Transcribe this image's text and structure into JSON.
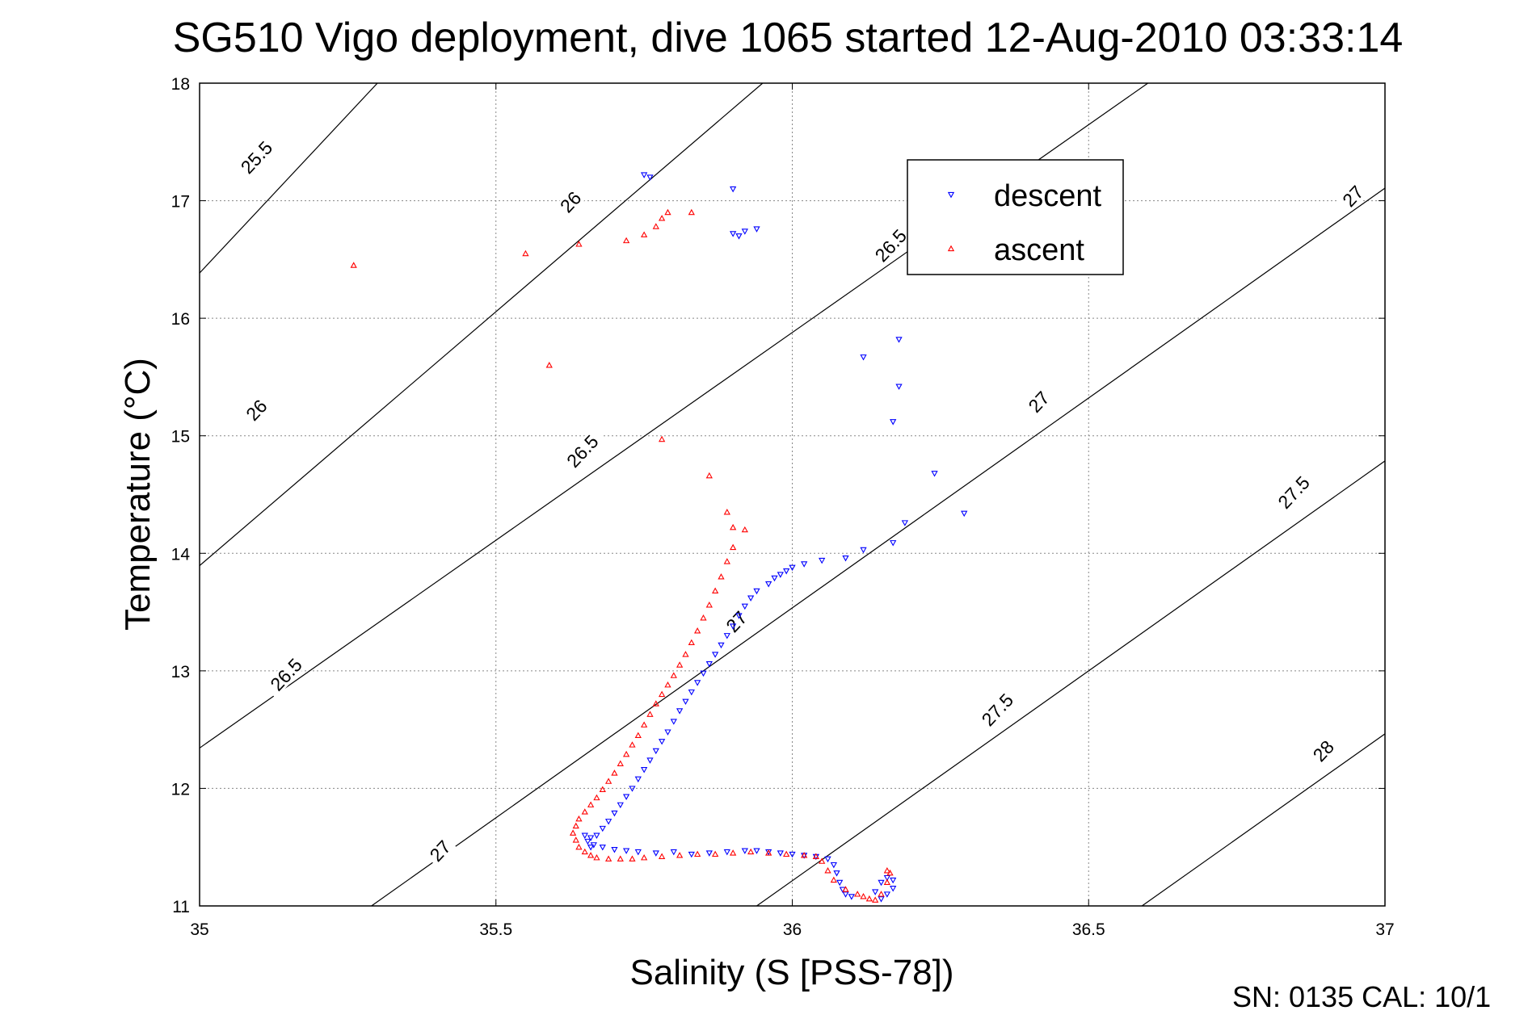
{
  "chart_data": {
    "type": "scatter",
    "title": "SG510 Vigo deployment, dive 1065 started 12-Aug-2010 03:33:14",
    "xlabel": "Salinity (S [PSS-78])",
    "ylabel": "Temperature (°C)",
    "xlim": [
      35,
      37
    ],
    "ylim": [
      11,
      18
    ],
    "x_ticks": [
      "35",
      "35.5",
      "36",
      "36.5",
      "37"
    ],
    "y_ticks": [
      "11",
      "12",
      "13",
      "14",
      "15",
      "16",
      "17",
      "18"
    ],
    "grid": true,
    "legend_position": "top-right",
    "footer": "SN: 0135  CAL: 10/1",
    "density_contours": [
      {
        "label": "25.5",
        "x_at_y11": 34.0,
        "x_at_y18": 35.3
      },
      {
        "label": "26",
        "x_at_y11": 34.33,
        "x_at_y18": 35.95
      },
      {
        "label": "26.5",
        "x_at_y11": 34.62,
        "x_at_y18": 36.6
      },
      {
        "label": "27",
        "x_at_y11": 35.29,
        "x_at_y18": 37.25
      },
      {
        "label": "27.5",
        "x_at_y11": 35.94,
        "x_at_y18": 37.9
      },
      {
        "label": "28",
        "x_at_y11": 36.59,
        "x_at_y18": 38.55
      }
    ],
    "contour_labels": [
      {
        "text": "25.5",
        "x": 35.1,
        "y": 17.35
      },
      {
        "text": "26",
        "x": 35.63,
        "y": 16.97
      },
      {
        "text": "26.5",
        "x": 36.17,
        "y": 16.6
      },
      {
        "text": "27",
        "x": 36.95,
        "y": 17.02
      },
      {
        "text": "26",
        "x": 35.1,
        "y": 15.2
      },
      {
        "text": "26.5",
        "x": 35.65,
        "y": 14.85
      },
      {
        "text": "27",
        "x": 36.42,
        "y": 15.27
      },
      {
        "text": "27.5",
        "x": 36.85,
        "y": 14.5
      },
      {
        "text": "26.5",
        "x": 35.15,
        "y": 12.95
      },
      {
        "text": "27",
        "x": 35.91,
        "y": 13.4
      },
      {
        "text": "27.5",
        "x": 36.35,
        "y": 12.65
      },
      {
        "text": "27",
        "x": 35.41,
        "y": 11.45
      },
      {
        "text": "28",
        "x": 36.9,
        "y": 12.3
      }
    ],
    "series": [
      {
        "name": "descent",
        "color": "#0000ff",
        "marker": "triangle-down",
        "x": [
          35.75,
          35.76,
          35.9,
          35.9,
          35.91,
          35.92,
          35.94,
          36.12,
          36.18,
          36.18,
          36.17,
          36.24,
          36.29,
          36.19,
          36.17,
          36.12,
          36.09,
          36.05,
          36.02,
          36.0,
          35.99,
          35.98,
          35.97,
          35.96,
          35.94,
          35.93,
          35.92,
          35.91,
          35.9,
          35.89,
          35.88,
          35.87,
          35.86,
          35.85,
          35.84,
          35.83,
          35.82,
          35.81,
          35.8,
          35.79,
          35.78,
          35.77,
          35.76,
          35.75,
          35.74,
          35.73,
          35.72,
          35.71,
          35.7,
          35.69,
          35.68,
          35.67,
          35.66,
          35.65,
          35.655,
          35.66,
          35.665,
          35.68,
          35.7,
          35.72,
          35.74,
          35.77,
          35.8,
          35.83,
          35.86,
          35.89,
          35.92,
          35.94,
          35.96,
          35.98,
          36.0,
          36.02,
          36.04,
          36.06,
          36.07,
          36.075,
          36.08,
          36.085,
          36.09,
          36.1,
          36.14,
          36.15,
          36.16,
          36.17,
          36.17,
          36.16,
          36.15
        ],
        "y": [
          17.22,
          17.2,
          17.1,
          16.72,
          16.7,
          16.74,
          16.76,
          15.67,
          15.82,
          15.42,
          15.12,
          14.68,
          14.34,
          14.26,
          14.09,
          14.03,
          13.96,
          13.94,
          13.91,
          13.88,
          13.85,
          13.82,
          13.79,
          13.74,
          13.68,
          13.62,
          13.55,
          13.47,
          13.38,
          13.3,
          13.22,
          13.14,
          13.06,
          12.98,
          12.9,
          12.82,
          12.74,
          12.66,
          12.57,
          12.48,
          12.4,
          12.32,
          12.24,
          12.16,
          12.08,
          12.0,
          11.93,
          11.86,
          11.79,
          11.72,
          11.66,
          11.6,
          11.58,
          11.6,
          11.55,
          11.5,
          11.52,
          11.5,
          11.48,
          11.47,
          11.46,
          11.45,
          11.46,
          11.44,
          11.45,
          11.46,
          11.47,
          11.47,
          11.46,
          11.45,
          11.44,
          11.43,
          11.42,
          11.4,
          11.35,
          11.28,
          11.2,
          11.14,
          11.1,
          11.08,
          11.12,
          11.2,
          11.24,
          11.22,
          11.15,
          11.1,
          11.06
        ]
      },
      {
        "name": "ascent",
        "color": "#ff0000",
        "marker": "triangle-up",
        "x": [
          35.26,
          35.55,
          35.64,
          35.72,
          35.75,
          35.77,
          35.78,
          35.79,
          35.83,
          35.59,
          35.78,
          35.86,
          35.89,
          35.9,
          35.92,
          35.9,
          35.89,
          35.88,
          35.87,
          35.86,
          35.85,
          35.84,
          35.83,
          35.82,
          35.81,
          35.8,
          35.79,
          35.78,
          35.77,
          35.76,
          35.75,
          35.74,
          35.73,
          35.72,
          35.71,
          35.7,
          35.69,
          35.68,
          35.67,
          35.66,
          35.65,
          35.64,
          35.635,
          35.63,
          35.635,
          35.64,
          35.65,
          35.66,
          35.67,
          35.69,
          35.71,
          35.73,
          35.75,
          35.78,
          35.81,
          35.84,
          35.87,
          35.9,
          35.93,
          35.96,
          35.99,
          36.02,
          36.04,
          36.05,
          36.06,
          36.07,
          36.09,
          36.11,
          36.12,
          36.13,
          36.14,
          36.15,
          36.16,
          36.165,
          36.16
        ],
        "y": [
          16.45,
          16.55,
          16.63,
          16.66,
          16.71,
          16.78,
          16.85,
          16.9,
          16.9,
          15.6,
          14.97,
          14.66,
          14.35,
          14.22,
          14.2,
          14.05,
          13.93,
          13.8,
          13.68,
          13.56,
          13.45,
          13.34,
          13.24,
          13.14,
          13.05,
          12.96,
          12.88,
          12.8,
          12.72,
          12.63,
          12.54,
          12.45,
          12.37,
          12.29,
          12.21,
          12.13,
          12.06,
          11.99,
          11.92,
          11.86,
          11.8,
          11.74,
          11.68,
          11.62,
          11.56,
          11.5,
          11.46,
          11.43,
          11.41,
          11.4,
          11.4,
          11.4,
          11.41,
          11.42,
          11.43,
          11.44,
          11.44,
          11.45,
          11.46,
          11.45,
          11.44,
          11.43,
          11.42,
          11.38,
          11.3,
          11.22,
          11.14,
          11.1,
          11.08,
          11.06,
          11.05,
          11.1,
          11.2,
          11.28,
          11.3
        ]
      }
    ]
  }
}
